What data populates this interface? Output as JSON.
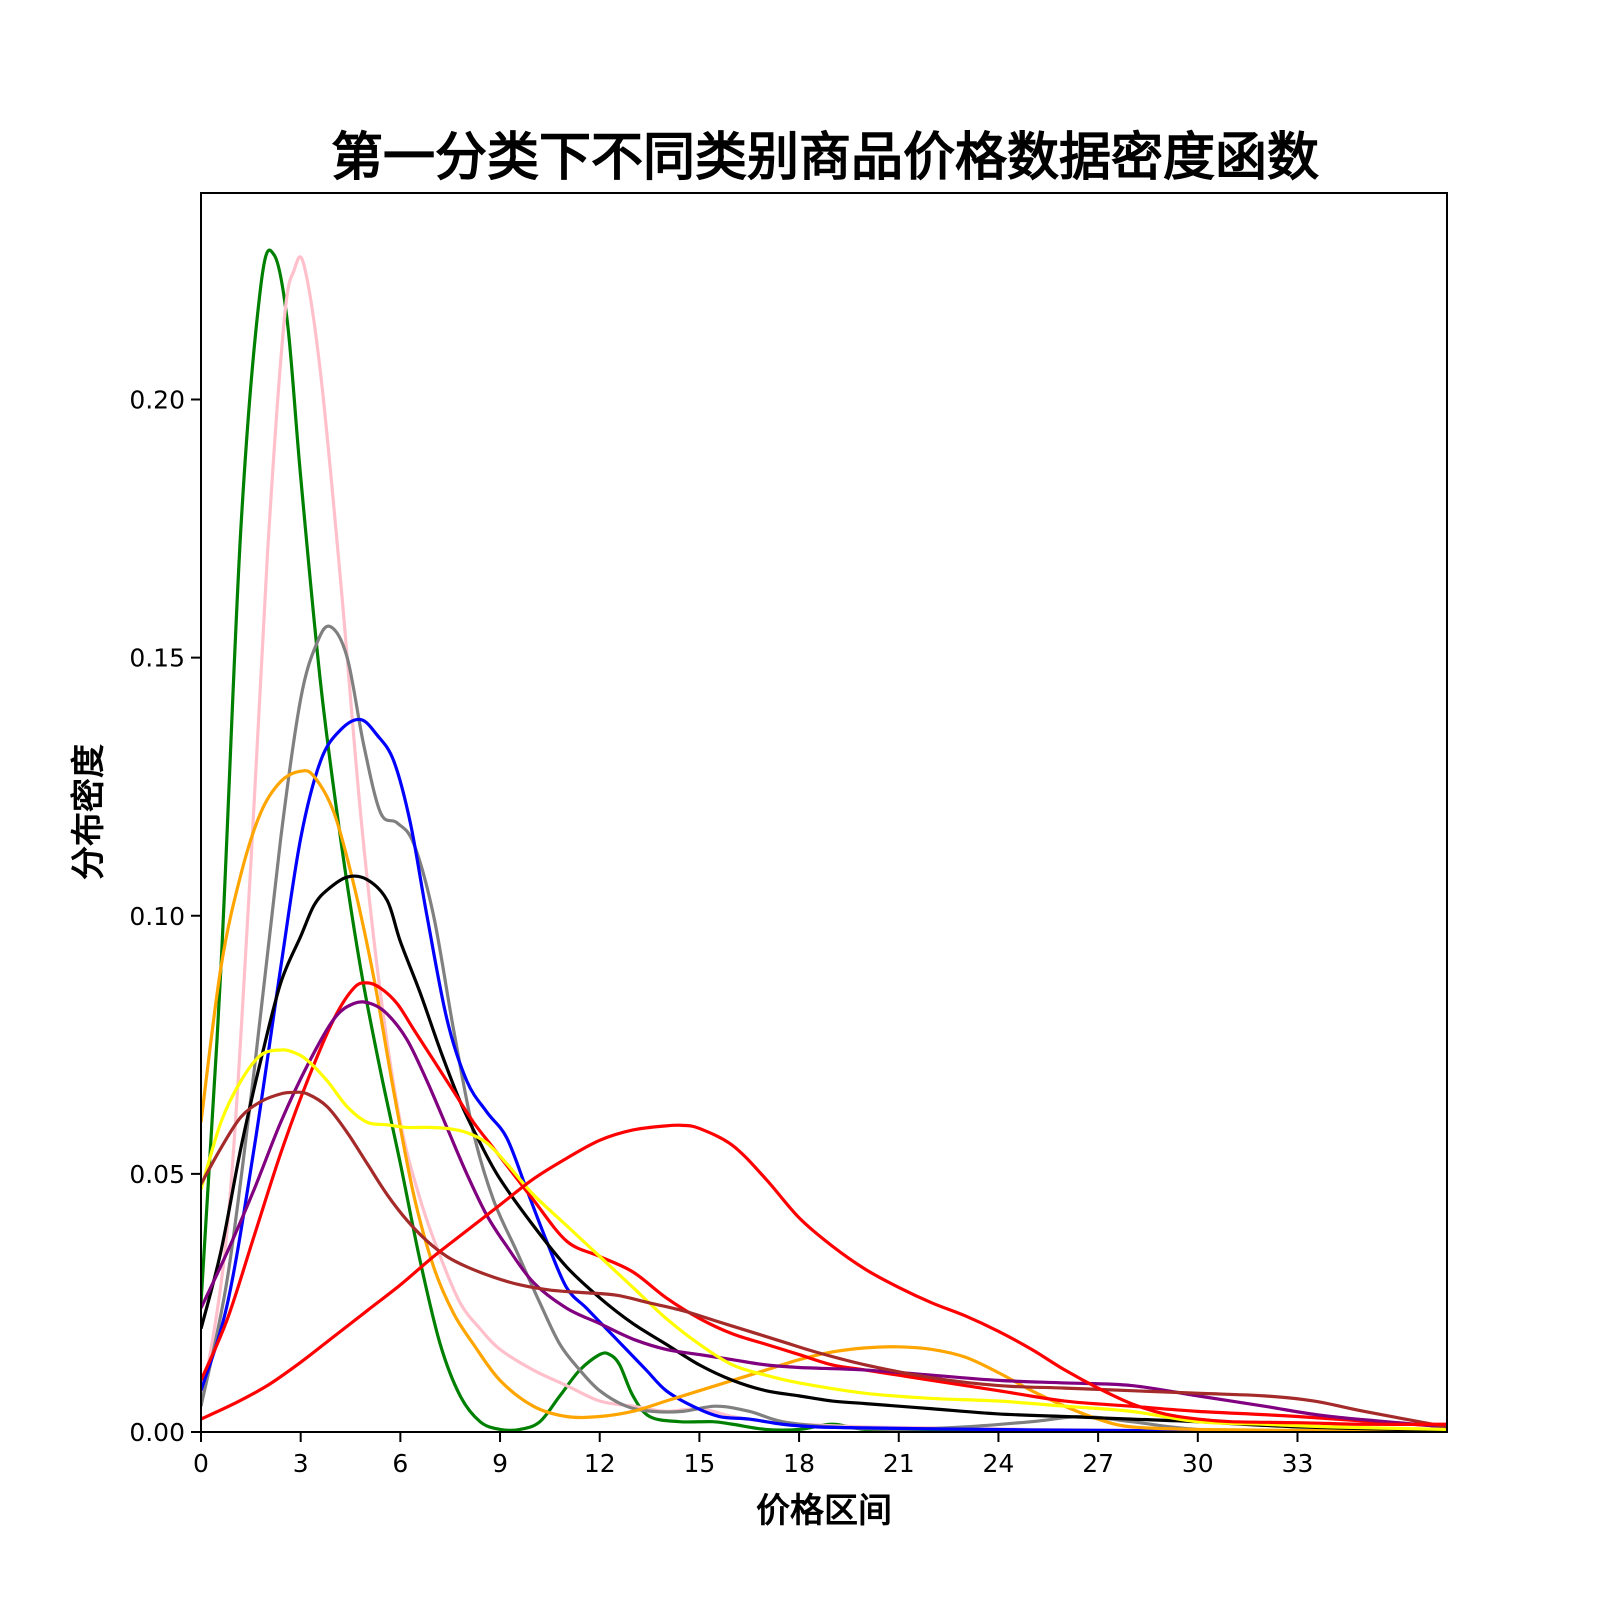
{
  "chart_data": {
    "type": "line",
    "title": "第一分类下不同类别商品价格数据密度函数",
    "xlabel": "价格区间",
    "ylabel": "分布密度",
    "xlim": [
      0,
      37.5
    ],
    "ylim": [
      0,
      0.24
    ],
    "xticks": [
      0,
      3,
      6,
      9,
      12,
      15,
      18,
      21,
      24,
      27,
      30,
      33
    ],
    "xtick_labels": [
      "0",
      "3",
      "6",
      "9",
      "12",
      "15",
      "18",
      "21",
      "24",
      "27",
      "30",
      "33"
    ],
    "yticks": [
      0.0,
      0.05,
      0.1,
      0.15,
      0.2
    ],
    "ytick_labels": [
      "0.00",
      "0.05",
      "0.10",
      "0.15",
      "0.20"
    ],
    "grid": false,
    "legend": "none",
    "series": [
      {
        "color": "#008000",
        "x": [
          0,
          0.6,
          1.2,
          1.8,
          2.2,
          2.6,
          3.0,
          3.6,
          4.2,
          4.8,
          5.4,
          6.0,
          6.6,
          7.2,
          7.8,
          8.4,
          9.0,
          9.6,
          10.2,
          10.8,
          11.4,
          12.0,
          12.3,
          12.6,
          13.0,
          13.5,
          14.4,
          15.4,
          16.0,
          17.0,
          18.0,
          19.0,
          20.0,
          22.0,
          25.0,
          37.5
        ],
        "y": [
          0.025,
          0.09,
          0.175,
          0.222,
          0.228,
          0.215,
          0.185,
          0.145,
          0.115,
          0.09,
          0.07,
          0.052,
          0.033,
          0.017,
          0.007,
          0.002,
          0.0005,
          0.0005,
          0.002,
          0.007,
          0.012,
          0.015,
          0.015,
          0.013,
          0.007,
          0.003,
          0.002,
          0.002,
          0.0015,
          0.0005,
          0.0005,
          0.0015,
          0.0005,
          0.0002,
          0.0001,
          0.0
        ]
      },
      {
        "color": "#ffc0cb",
        "x": [
          0,
          0.8,
          1.5,
          2.0,
          2.5,
          2.8,
          3.1,
          3.6,
          4.2,
          4.8,
          5.4,
          6.0,
          6.6,
          7.2,
          7.8,
          8.4,
          9.0,
          10.0,
          11.0,
          12.0,
          13.0,
          14.0,
          15.0,
          16.0,
          17.0,
          18.0,
          20.0,
          22.0,
          25.0,
          30.0,
          37.5
        ],
        "y": [
          0.005,
          0.04,
          0.11,
          0.17,
          0.215,
          0.225,
          0.226,
          0.205,
          0.165,
          0.12,
          0.085,
          0.06,
          0.045,
          0.034,
          0.025,
          0.02,
          0.016,
          0.012,
          0.009,
          0.006,
          0.005,
          0.004,
          0.0045,
          0.003,
          0.002,
          0.0015,
          0.001,
          0.0008,
          0.0005,
          0.0002,
          0.0
        ]
      },
      {
        "color": "#808080",
        "x": [
          0,
          0.8,
          1.6,
          2.4,
          3.0,
          3.5,
          3.9,
          4.4,
          4.9,
          5.4,
          5.9,
          6.4,
          7.0,
          7.6,
          8.2,
          8.8,
          9.5,
          10.2,
          10.8,
          11.4,
          12.0,
          12.8,
          13.6,
          14.5,
          15.5,
          16.5,
          17.5,
          19.0,
          21.0,
          23.0,
          25.0,
          26.5,
          28.0,
          30.0,
          33.0,
          37.5
        ],
        "y": [
          0.005,
          0.03,
          0.07,
          0.115,
          0.142,
          0.153,
          0.156,
          0.15,
          0.133,
          0.12,
          0.118,
          0.114,
          0.1,
          0.078,
          0.058,
          0.045,
          0.035,
          0.025,
          0.017,
          0.012,
          0.008,
          0.005,
          0.004,
          0.004,
          0.005,
          0.004,
          0.002,
          0.001,
          0.0005,
          0.001,
          0.002,
          0.003,
          0.002,
          0.0005,
          0.0002,
          0.0
        ]
      },
      {
        "color": "#0000ff",
        "x": [
          0,
          0.8,
          1.6,
          2.4,
          3.0,
          3.6,
          4.2,
          4.8,
          5.3,
          5.8,
          6.3,
          6.8,
          7.4,
          8.0,
          8.6,
          9.2,
          9.8,
          10.4,
          11.0,
          11.6,
          12.2,
          12.8,
          13.4,
          14.0,
          14.8,
          15.6,
          16.5,
          17.5,
          18.5,
          20.0,
          22.0,
          25.0,
          30.0,
          37.5
        ],
        "y": [
          0.008,
          0.025,
          0.055,
          0.09,
          0.115,
          0.13,
          0.136,
          0.138,
          0.135,
          0.13,
          0.118,
          0.1,
          0.08,
          0.068,
          0.062,
          0.057,
          0.047,
          0.037,
          0.028,
          0.024,
          0.02,
          0.016,
          0.012,
          0.008,
          0.005,
          0.003,
          0.0025,
          0.0015,
          0.001,
          0.0008,
          0.0006,
          0.0004,
          0.0002,
          0.0
        ]
      },
      {
        "color": "#ffa500",
        "x": [
          0,
          0.6,
          1.2,
          1.8,
          2.4,
          3.0,
          3.4,
          4.0,
          4.6,
          5.2,
          5.8,
          6.4,
          7.0,
          7.6,
          8.2,
          9.0,
          10.0,
          11.0,
          12.0,
          13.0,
          14.0,
          15.0,
          16.0,
          17.0,
          18.0,
          19.0,
          20.0,
          21.0,
          22.0,
          23.0,
          24.0,
          25.0,
          26.0,
          27.0,
          28.0,
          30.0,
          33.0,
          37.5
        ],
        "y": [
          0.06,
          0.09,
          0.108,
          0.12,
          0.126,
          0.128,
          0.127,
          0.12,
          0.106,
          0.088,
          0.066,
          0.046,
          0.032,
          0.023,
          0.017,
          0.01,
          0.005,
          0.003,
          0.003,
          0.004,
          0.006,
          0.008,
          0.01,
          0.012,
          0.014,
          0.0155,
          0.0163,
          0.0165,
          0.016,
          0.0145,
          0.0115,
          0.008,
          0.005,
          0.0025,
          0.001,
          0.0005,
          0.0003,
          0.0
        ]
      },
      {
        "color": "#000000",
        "x": [
          0,
          0.6,
          1.2,
          1.8,
          2.4,
          3.0,
          3.4,
          3.8,
          4.4,
          5.0,
          5.6,
          6.0,
          6.6,
          7.2,
          7.8,
          8.4,
          9.0,
          10.0,
          11.0,
          12.0,
          13.0,
          14.0,
          15.0,
          16.0,
          17.0,
          18.0,
          19.0,
          20.0,
          22.0,
          24.0,
          26.0,
          28.0,
          30.0,
          33.0,
          37.5
        ],
        "y": [
          0.02,
          0.035,
          0.055,
          0.072,
          0.087,
          0.096,
          0.102,
          0.105,
          0.1075,
          0.107,
          0.103,
          0.095,
          0.085,
          0.074,
          0.064,
          0.056,
          0.049,
          0.04,
          0.032,
          0.026,
          0.021,
          0.017,
          0.013,
          0.01,
          0.008,
          0.007,
          0.006,
          0.0055,
          0.0045,
          0.0035,
          0.003,
          0.0025,
          0.002,
          0.001,
          0.0003
        ]
      },
      {
        "color": "#ff0000",
        "x": [
          0,
          0.8,
          1.6,
          2.4,
          3.2,
          4.0,
          4.6,
          5.0,
          5.4,
          5.9,
          6.4,
          7.0,
          7.6,
          8.2,
          8.8,
          9.4,
          10.0,
          11.0,
          12.0,
          13.0,
          14.0,
          15.0,
          16.0,
          17.0,
          18.0,
          19.0,
          20.0,
          21.0,
          22.0,
          24.0,
          26.0,
          28.0,
          30.0,
          33.0,
          37.5
        ],
        "y": [
          0.01,
          0.022,
          0.038,
          0.054,
          0.068,
          0.08,
          0.086,
          0.087,
          0.086,
          0.083,
          0.078,
          0.072,
          0.066,
          0.06,
          0.055,
          0.05,
          0.045,
          0.037,
          0.034,
          0.031,
          0.026,
          0.022,
          0.019,
          0.017,
          0.015,
          0.013,
          0.012,
          0.011,
          0.01,
          0.008,
          0.006,
          0.005,
          0.004,
          0.003,
          0.001
        ]
      },
      {
        "color": "#800080",
        "x": [
          0,
          0.8,
          1.6,
          2.4,
          3.2,
          4.0,
          4.6,
          5.1,
          5.6,
          6.2,
          6.8,
          7.4,
          8.0,
          8.6,
          9.2,
          10.0,
          11.0,
          12.0,
          13.0,
          14.0,
          15.0,
          16.0,
          17.0,
          18.0,
          20.0,
          22.0,
          24.0,
          26.0,
          28.0,
          30.0,
          32.0,
          34.0,
          37.5
        ],
        "y": [
          0.024,
          0.035,
          0.047,
          0.06,
          0.071,
          0.08,
          0.083,
          0.083,
          0.081,
          0.076,
          0.068,
          0.059,
          0.05,
          0.042,
          0.036,
          0.029,
          0.024,
          0.021,
          0.018,
          0.016,
          0.015,
          0.014,
          0.013,
          0.0125,
          0.012,
          0.011,
          0.01,
          0.0095,
          0.009,
          0.007,
          0.005,
          0.003,
          0.001
        ]
      },
      {
        "color": "#ffff00",
        "x": [
          0,
          0.6,
          1.2,
          1.8,
          2.4,
          2.8,
          3.2,
          3.8,
          4.4,
          5.0,
          5.6,
          6.2,
          6.8,
          7.4,
          8.0,
          8.6,
          9.2,
          10.0,
          11.0,
          12.0,
          13.0,
          14.0,
          15.0,
          16.0,
          17.0,
          18.0,
          20.0,
          22.0,
          24.0,
          26.0,
          28.0,
          30.0,
          32.0,
          34.0,
          37.5
        ],
        "y": [
          0.047,
          0.06,
          0.068,
          0.073,
          0.074,
          0.0735,
          0.072,
          0.068,
          0.063,
          0.06,
          0.0595,
          0.059,
          0.059,
          0.0588,
          0.058,
          0.056,
          0.052,
          0.046,
          0.04,
          0.034,
          0.028,
          0.022,
          0.017,
          0.013,
          0.011,
          0.0095,
          0.0075,
          0.0065,
          0.006,
          0.005,
          0.004,
          0.002,
          0.0015,
          0.001,
          0.0005
        ]
      },
      {
        "color": "#a52a2a",
        "x": [
          0,
          0.6,
          1.2,
          1.8,
          2.4,
          2.8,
          3.2,
          3.8,
          4.4,
          5.0,
          5.6,
          6.2,
          6.8,
          7.4,
          8.0,
          8.8,
          9.6,
          10.5,
          11.5,
          12.5,
          13.5,
          14.5,
          15.5,
          16.5,
          17.5,
          18.5,
          20.0,
          22.0,
          24.0,
          26.0,
          28.0,
          30.0,
          32.0,
          33.5,
          35.0,
          37.5
        ],
        "y": [
          0.048,
          0.055,
          0.061,
          0.064,
          0.0655,
          0.0658,
          0.0655,
          0.063,
          0.058,
          0.052,
          0.046,
          0.041,
          0.037,
          0.034,
          0.032,
          0.03,
          0.0285,
          0.0275,
          0.027,
          0.0265,
          0.025,
          0.0235,
          0.0215,
          0.0195,
          0.0175,
          0.0155,
          0.013,
          0.0105,
          0.009,
          0.0085,
          0.008,
          0.0075,
          0.007,
          0.006,
          0.004,
          0.001
        ]
      },
      {
        "color": "#ff0000",
        "x": [
          0,
          1.0,
          2.0,
          3.0,
          4.0,
          5.0,
          6.0,
          7.0,
          8.0,
          9.0,
          10.0,
          11.0,
          12.0,
          13.0,
          14.0,
          14.5,
          15.0,
          16.0,
          17.0,
          18.0,
          19.0,
          20.0,
          21.0,
          22.0,
          23.0,
          24.0,
          25.0,
          26.0,
          27.0,
          28.0,
          29.0,
          30.0,
          31.0,
          33.0,
          35.0,
          37.5
        ],
        "y": [
          0.0025,
          0.0055,
          0.009,
          0.0135,
          0.0185,
          0.0235,
          0.0285,
          0.034,
          0.039,
          0.044,
          0.049,
          0.053,
          0.0565,
          0.0585,
          0.0593,
          0.0594,
          0.0588,
          0.0555,
          0.049,
          0.0415,
          0.036,
          0.0315,
          0.028,
          0.025,
          0.0225,
          0.0195,
          0.016,
          0.012,
          0.0085,
          0.0055,
          0.0035,
          0.0025,
          0.002,
          0.0018,
          0.0015,
          0.0015
        ]
      }
    ]
  }
}
